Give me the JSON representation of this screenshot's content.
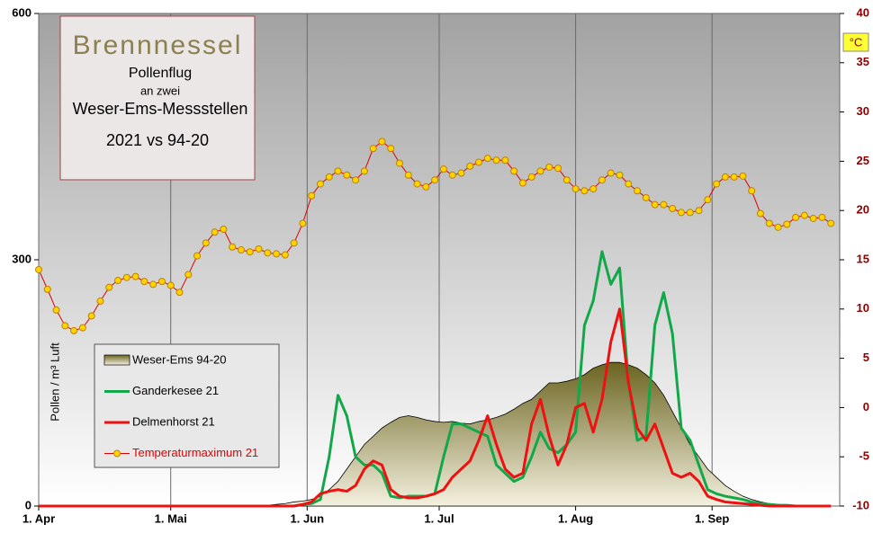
{
  "chart_data": {
    "type": "line",
    "title": "Brennnessel",
    "subtitle": [
      "Pollenflug",
      "an zwei",
      "Weser-Ems-Messstellen",
      "2021 vs 94-20"
    ],
    "y_label": "Pollen / m³ Luft",
    "y2_label": "°C",
    "x": [
      0,
      2,
      4,
      6,
      8,
      10,
      12,
      14,
      16,
      18,
      20,
      22,
      24,
      26,
      28,
      30,
      32,
      34,
      36,
      38,
      40,
      42,
      44,
      46,
      48,
      50,
      52,
      54,
      56,
      58,
      60,
      62,
      64,
      66,
      68,
      70,
      72,
      74,
      76,
      78,
      80,
      82,
      84,
      86,
      88,
      90,
      92,
      94,
      96,
      98,
      100,
      102,
      104,
      106,
      108,
      110,
      112,
      114,
      116,
      118,
      120,
      122,
      124,
      126,
      128,
      130,
      132,
      134,
      136,
      138,
      140,
      142,
      144,
      146,
      148,
      150,
      152,
      154,
      156,
      158,
      160,
      162,
      164,
      166,
      168,
      170,
      172,
      174,
      176,
      178,
      180
    ],
    "xlim": [
      0,
      182
    ],
    "xticks": [
      {
        "value": 0,
        "label": "1. Apr"
      },
      {
        "value": 30,
        "label": "1. Mai"
      },
      {
        "value": 61,
        "label": "1. Jun"
      },
      {
        "value": 91,
        "label": "1. Jul"
      },
      {
        "value": 122,
        "label": "1. Aug"
      },
      {
        "value": 153,
        "label": "1. Sep"
      }
    ],
    "ylim": [
      0,
      600
    ],
    "yticks": [
      0,
      300,
      600
    ],
    "y2lim": [
      -10,
      40
    ],
    "y2ticks": [
      -10,
      -5,
      0,
      5,
      10,
      15,
      20,
      25,
      30,
      35,
      40
    ],
    "grid": true,
    "series": [
      {
        "name": "Weser-Ems 94-20",
        "style": "area",
        "color": "#6b6420",
        "values": [
          0,
          0,
          0,
          0,
          0,
          0,
          0,
          0,
          0,
          0,
          0,
          0,
          0,
          0,
          0,
          0,
          0,
          0,
          0,
          0,
          0,
          0,
          0,
          0,
          0,
          0,
          1,
          2,
          3,
          5,
          6,
          8,
          12,
          20,
          30,
          45,
          60,
          75,
          85,
          95,
          102,
          108,
          110,
          108,
          105,
          103,
          102,
          103,
          101,
          100,
          103,
          105,
          108,
          112,
          118,
          125,
          130,
          140,
          150,
          150,
          152,
          155,
          160,
          168,
          172,
          175,
          175,
          172,
          168,
          160,
          150,
          135,
          115,
          95,
          75,
          60,
          45,
          35,
          25,
          18,
          12,
          8,
          5,
          3,
          2,
          1,
          1,
          0,
          0,
          0,
          0
        ]
      },
      {
        "name": "Ganderkesee 21",
        "style": "line",
        "color": "#12a84a",
        "values": [
          0,
          0,
          0,
          0,
          0,
          0,
          0,
          0,
          0,
          0,
          0,
          0,
          0,
          0,
          0,
          0,
          0,
          0,
          0,
          0,
          0,
          0,
          0,
          0,
          0,
          0,
          0,
          0,
          0,
          0,
          2,
          3,
          8,
          60,
          135,
          110,
          60,
          50,
          50,
          40,
          12,
          10,
          12,
          12,
          12,
          15,
          60,
          100,
          100,
          95,
          90,
          85,
          50,
          40,
          30,
          35,
          60,
          90,
          70,
          65,
          75,
          90,
          220,
          250,
          310,
          270,
          290,
          150,
          80,
          85,
          220,
          260,
          210,
          95,
          80,
          50,
          20,
          15,
          12,
          10,
          8,
          5,
          3,
          2,
          1,
          1,
          0,
          0,
          0,
          0,
          0
        ]
      },
      {
        "name": "Delmenhorst 21",
        "style": "line",
        "color": "#ee1111",
        "values": [
          0,
          0,
          0,
          0,
          0,
          0,
          0,
          0,
          0,
          0,
          0,
          0,
          0,
          0,
          0,
          0,
          0,
          0,
          0,
          0,
          0,
          0,
          0,
          0,
          0,
          0,
          0,
          0,
          0,
          0,
          2,
          5,
          15,
          18,
          20,
          18,
          25,
          45,
          55,
          50,
          20,
          12,
          10,
          10,
          12,
          15,
          20,
          35,
          45,
          55,
          80,
          110,
          75,
          45,
          35,
          40,
          100,
          130,
          85,
          50,
          75,
          120,
          125,
          90,
          130,
          200,
          240,
          150,
          95,
          80,
          100,
          70,
          40,
          35,
          40,
          30,
          12,
          8,
          5,
          4,
          3,
          2,
          1,
          0,
          0,
          0,
          0,
          0,
          0,
          0,
          0
        ]
      },
      {
        "name": "Temperaturmaximum 21",
        "style": "markers",
        "axis": "y2",
        "color": "#e00000",
        "marker_color": "#ffd400",
        "values": [
          14.0,
          12.0,
          9.9,
          8.3,
          7.8,
          8.1,
          9.3,
          10.8,
          12.2,
          12.9,
          13.2,
          13.3,
          12.8,
          12.5,
          12.8,
          12.4,
          11.7,
          13.5,
          15.4,
          16.7,
          17.8,
          18.1,
          16.3,
          16.0,
          15.8,
          16.1,
          15.7,
          15.6,
          15.5,
          16.7,
          18.7,
          21.5,
          22.7,
          23.4,
          24.0,
          23.6,
          23.1,
          24.0,
          26.3,
          27.0,
          26.3,
          24.8,
          23.6,
          22.7,
          22.4,
          23.1,
          24.2,
          23.6,
          23.8,
          24.5,
          24.9,
          25.3,
          25.1,
          25.1,
          24.0,
          22.8,
          23.4,
          24.0,
          24.4,
          24.3,
          23.1,
          22.2,
          22.0,
          22.2,
          23.1,
          23.8,
          23.6,
          22.7,
          22.0,
          21.3,
          20.6,
          20.6,
          20.2,
          19.8,
          19.8,
          20.0,
          21.1,
          22.7,
          23.4,
          23.4,
          23.5,
          22.0,
          19.7,
          18.7,
          18.3,
          18.6,
          19.3,
          19.5,
          19.2,
          19.3,
          18.7
        ]
      }
    ]
  }
}
